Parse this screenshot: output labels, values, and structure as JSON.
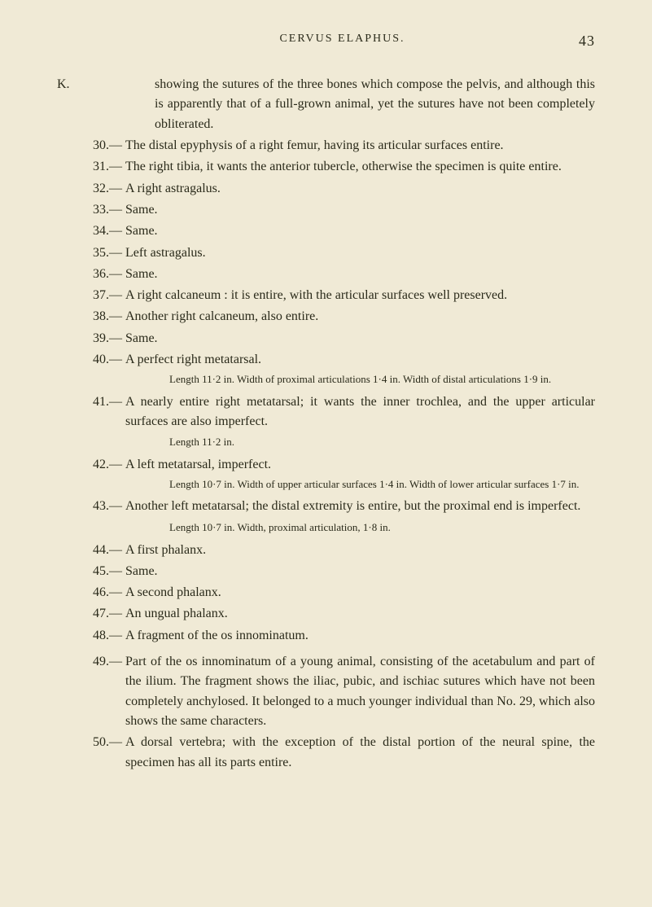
{
  "header": {
    "title": "CERVUS ELAPHUS.",
    "page_number": "43"
  },
  "section_label": "K.",
  "continuation": "showing the sutures of the three bones which compose the pelvis, and although this is apparently that of a full-grown animal, yet the sutures have not been completely obliterated.",
  "entries": [
    {
      "num": "30.—",
      "text": "The distal epyphysis of a right femur, having its articular surfaces entire."
    },
    {
      "num": "31.—",
      "text": "The right tibia, it wants the anterior tubercle, otherwise the specimen is quite entire."
    },
    {
      "num": "32.—",
      "text": "A right astragalus."
    },
    {
      "num": "33.—",
      "text": "Same."
    },
    {
      "num": "34.—",
      "text": "Same."
    },
    {
      "num": "35.—",
      "text": "Left astragalus."
    },
    {
      "num": "36.—",
      "text": "Same."
    },
    {
      "num": "37.—",
      "text": "A right calcaneum : it is entire, with the articular surfaces well preserved."
    },
    {
      "num": "38.—",
      "text": "Another right calcaneum, also entire."
    },
    {
      "num": "39.—",
      "text": "Same."
    },
    {
      "num": "40.—",
      "text": "A perfect right metatarsal.",
      "note": "Length 11·2 in. Width of proximal articulations 1·4 in. Width of distal articulations 1·9 in."
    },
    {
      "num": "41.—",
      "text": "A nearly entire right metatarsal; it wants the inner trochlea, and the upper articular surfaces are also imperfect.",
      "subnote": "Length 11·2 in."
    },
    {
      "num": "42.—",
      "text": "A left metatarsal, imperfect.",
      "note": "Length 10·7 in. Width of upper articular surfaces 1·4 in. Width of lower articular surfaces 1·7 in."
    },
    {
      "num": "43.—",
      "text": "Another left metatarsal; the distal extremity is entire, but the proximal end is imperfect.",
      "subnote": "Length 10·7 in. Width, proximal articulation, 1·8 in."
    },
    {
      "num": "44.—",
      "text": "A first phalanx."
    },
    {
      "num": "45.—",
      "text": "Same."
    },
    {
      "num": "46.—",
      "text": "A second phalanx."
    },
    {
      "num": "47.—",
      "text": "An ungual phalanx."
    },
    {
      "num": "48.—",
      "text": "A fragment of the os innominatum."
    },
    {
      "num": "49.—",
      "text": "Part of the os innominatum of a young animal, consisting of the acetabulum and part of the ilium. The fragment shows the iliac, pubic, and ischiac sutures which have not been completely anchylosed. It belonged to a much younger individual than No. 29, which also shows the same characters.",
      "gap": true
    },
    {
      "num": "50.—",
      "text": "A dorsal vertebra; with the exception of the distal portion of the neural spine, the specimen has all its parts entire."
    }
  ]
}
